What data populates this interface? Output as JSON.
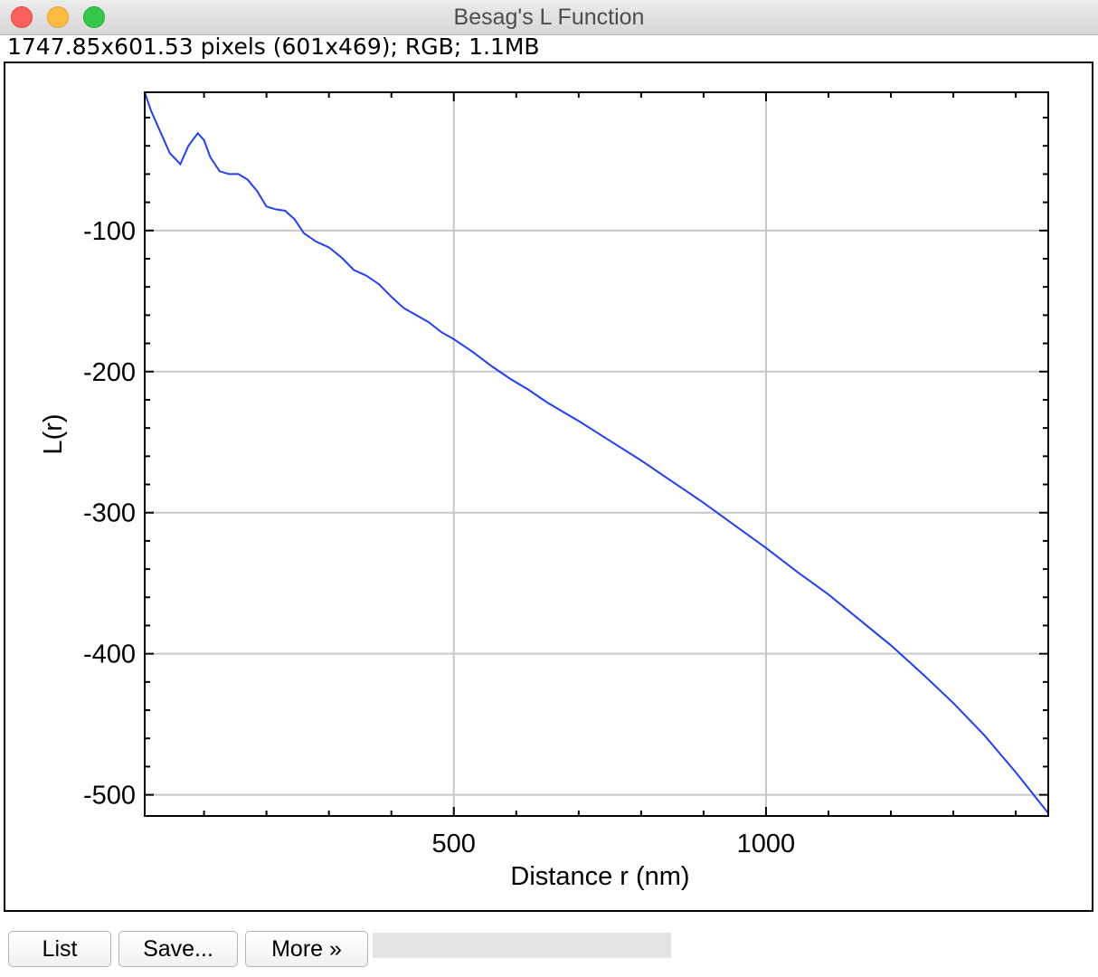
{
  "window": {
    "title": "Besag's L Function"
  },
  "info_bar": {
    "text": "1747.85x601.53 pixels (601x469); RGB; 1.1MB"
  },
  "buttons": {
    "list": "List",
    "save": "Save...",
    "more": "More »"
  },
  "status_text": "",
  "colors": {
    "series": "#1f3fff",
    "grid": "#c8c8c8",
    "close": "#fc605c",
    "minimize": "#fdbc40",
    "maximize": "#34c84a"
  },
  "chart_data": {
    "type": "line",
    "title": "",
    "xlabel": "Distance r (nm)",
    "ylabel": "L(r)",
    "xlim": [
      5,
      1452
    ],
    "ylim": [
      -515,
      -2
    ],
    "xticks": [
      500,
      1000
    ],
    "yticks": [
      -100,
      -200,
      -300,
      -400,
      -500
    ],
    "grid": true,
    "series": [
      {
        "x": [
          5,
          15,
          30,
          45,
          62,
          75,
          90,
          100,
          110,
          125,
          140,
          155,
          170,
          185,
          200,
          215,
          230,
          245,
          260,
          280,
          300,
          320,
          340,
          360,
          380,
          400,
          420,
          440,
          460,
          480,
          500,
          530,
          560,
          590,
          620,
          650,
          700,
          750,
          800,
          850,
          900,
          950,
          1000,
          1050,
          1100,
          1150,
          1200,
          1250,
          1300,
          1350,
          1400,
          1452
        ],
        "y": [
          -2,
          -15,
          -30,
          -45,
          -53,
          -40,
          -31,
          -36,
          -48,
          -58,
          -60,
          -60,
          -64,
          -72,
          -83,
          -85,
          -86,
          -92,
          -102,
          -108,
          -112,
          -119,
          -128,
          -132,
          -138,
          -147,
          -155,
          -160,
          -165,
          -172,
          -177,
          -186,
          -196,
          -205,
          -213,
          -222,
          -235,
          -249,
          -263,
          -278,
          -293,
          -309,
          -325,
          -342,
          -358,
          -376,
          -394,
          -414,
          -435,
          -458,
          -484,
          -513
        ]
      }
    ]
  }
}
